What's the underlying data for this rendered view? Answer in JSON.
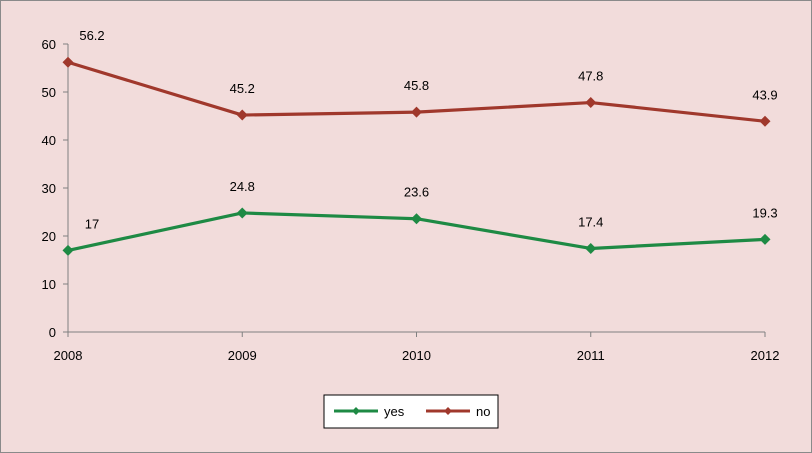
{
  "chart_data": {
    "type": "line",
    "title": "",
    "xlabel": "",
    "ylabel": "",
    "categories": [
      "2008",
      "2009",
      "2010",
      "2011",
      "2012"
    ],
    "ylim": [
      0,
      60
    ],
    "yticks": [
      0,
      10,
      20,
      30,
      40,
      50,
      60
    ],
    "grid": false,
    "legend_position": "bottom",
    "series": [
      {
        "name": "yes",
        "color": "#1e8a44",
        "values": [
          17,
          24.8,
          23.6,
          17.4,
          19.3
        ],
        "labels": [
          "17",
          "24.8",
          "23.6",
          "17.4",
          "19.3"
        ]
      },
      {
        "name": "no",
        "color": "#a0382c",
        "values": [
          56.2,
          45.2,
          45.8,
          47.8,
          43.9
        ],
        "labels": [
          "56.2",
          "45.2",
          "45.8",
          "47.8",
          "43.9"
        ]
      }
    ]
  }
}
